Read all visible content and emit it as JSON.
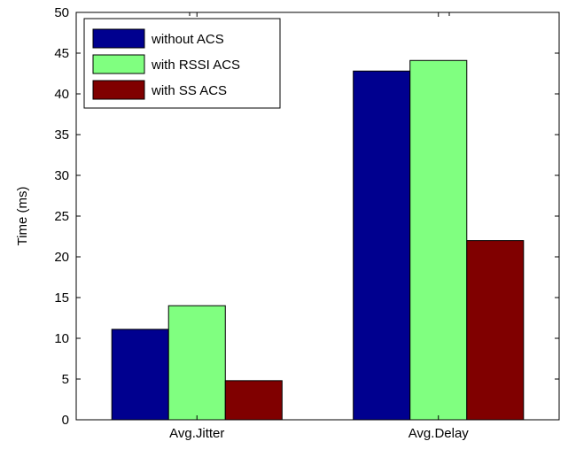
{
  "chart_data": {
    "type": "bar",
    "title": "",
    "xlabel": "",
    "ylabel": "Time (ms)",
    "categories": [
      "Avg.Jitter",
      "Avg.Delay"
    ],
    "series": [
      {
        "name": "without ACS",
        "values": [
          11.1,
          42.8
        ],
        "color": "#00008f"
      },
      {
        "name": "with RSSI ACS",
        "values": [
          14.0,
          44.1
        ],
        "color": "#80ff80"
      },
      {
        "name": "with SS ACS",
        "values": [
          4.8,
          22.0
        ],
        "color": "#800000"
      }
    ],
    "ylim": [
      0,
      50
    ],
    "yticks": [
      0,
      5,
      10,
      15,
      20,
      25,
      30,
      35,
      40,
      45,
      50
    ],
    "grid": false,
    "legend_position": "top-left"
  }
}
